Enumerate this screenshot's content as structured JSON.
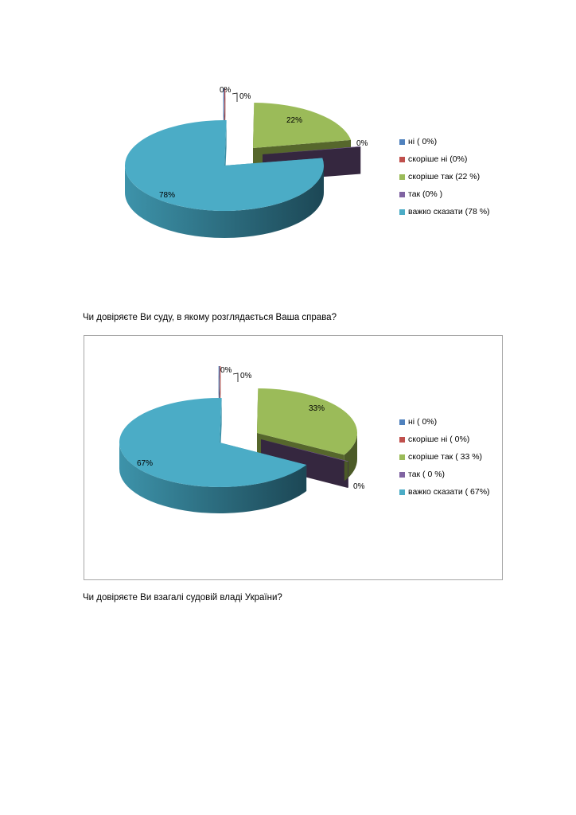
{
  "questions": [
    "Чи довіряєте Ви суду, в якому розглядається Ваша справа?",
    "Чи довіряєте Ви взагалі судовій владі України?"
  ],
  "chart_data": [
    {
      "type": "pie",
      "style": "3d-exploded",
      "categories": [
        "ні",
        "скоріше ні",
        "скоріше так",
        "так",
        "важко сказати"
      ],
      "values": [
        0,
        0,
        22,
        0,
        78
      ],
      "data_labels": [
        "0%",
        "0%",
        "22%",
        "0%",
        "78%"
      ],
      "legend": [
        "ні ( 0%)",
        "скоріше ні (0%)",
        "скоріше так (22 %)",
        "так (0% )",
        "важко сказати (78 %)"
      ],
      "legend_position": "right",
      "colors": [
        "#4F81BD",
        "#C0504D",
        "#9BBB59",
        "#8064A2",
        "#4BACC6"
      ]
    },
    {
      "type": "pie",
      "style": "3d-exploded",
      "categories": [
        "ні",
        "скоріше ні",
        "скоріше так",
        "так",
        "важко сказати"
      ],
      "values": [
        0,
        0,
        33,
        0,
        67
      ],
      "data_labels": [
        "0%",
        "0%",
        "33%",
        "0%",
        "67%"
      ],
      "legend": [
        "ні ( 0%)",
        "скоріше ні ( 0%)",
        "скоріше так ( 33 %)",
        "так ( 0 %)",
        "важко сказати ( 67%)"
      ],
      "legend_position": "right",
      "colors": [
        "#4F81BD",
        "#C0504D",
        "#9BBB59",
        "#8064A2",
        "#4BACC6"
      ]
    }
  ]
}
